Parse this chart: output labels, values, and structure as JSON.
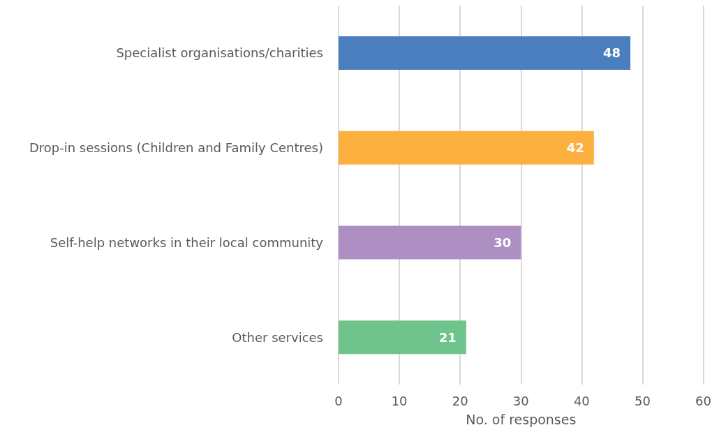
{
  "chart_data": {
    "type": "bar",
    "orientation": "horizontal",
    "xlabel": "No. of responses",
    "categories": [
      "Specialist organisations/charities",
      "Drop-in sessions (Children and Family Centres)",
      "Self-help networks in their local community",
      "Other services"
    ],
    "values": [
      48,
      42,
      30,
      21
    ],
    "colors": [
      "#4a7ebf",
      "#fbb040",
      "#ae8fc4",
      "#6fc48c"
    ],
    "xlim": [
      0,
      60
    ],
    "xticks": [
      0,
      10,
      20,
      30,
      40,
      50,
      60
    ],
    "grid": "x",
    "data_labels": true
  }
}
